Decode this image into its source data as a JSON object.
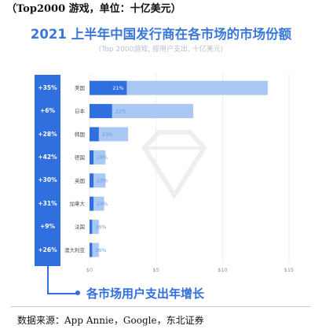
{
  "top_caption": "（Top2000 游戏，单位：十亿美元）",
  "source_note": "数据来源：App Annie，Google，东北证券",
  "legend_label": "各市场用户支出年增长",
  "colors": {
    "bar_dark": "#2f6fde",
    "bar_light": "#a9c8f3",
    "panel": "#2f6fde",
    "title": "#3a78d8"
  },
  "chart_data": {
    "type": "bar",
    "orientation": "horizontal",
    "stacked": true,
    "title": "2021 上半年中国发行商在各市场的市场份额",
    "subtitle": "(Top 2000游戏, 按用户支出, 十亿美元)",
    "categories": [
      "美国",
      "日本",
      "韩国",
      "德国",
      "英国",
      "加拿大",
      "法国",
      "澳大利亚"
    ],
    "series": [
      {
        "values": [
          2.8,
          1.7,
          0.7,
          0.3,
          0.3,
          0.3,
          0.2,
          0.2
        ]
      },
      {
        "values": [
          10.6,
          6.1,
          2.2,
          0.9,
          0.9,
          0.8,
          0.5,
          0.5
        ]
      }
    ],
    "share_labels": [
      "21%",
      "22%",
      "23%",
      "28%",
      "23%",
      "24%",
      "26%",
      "26%"
    ],
    "growth_labels": [
      "+35%",
      "+6%",
      "+28%",
      "+42%",
      "+30%",
      "+31%",
      "+9%",
      "+26%"
    ],
    "x_ticks": [
      "$0",
      "$5",
      "$10",
      "$15"
    ],
    "x_tick_values": [
      0,
      5,
      10,
      15
    ],
    "xlim": [
      0,
      15
    ],
    "grid": true
  }
}
